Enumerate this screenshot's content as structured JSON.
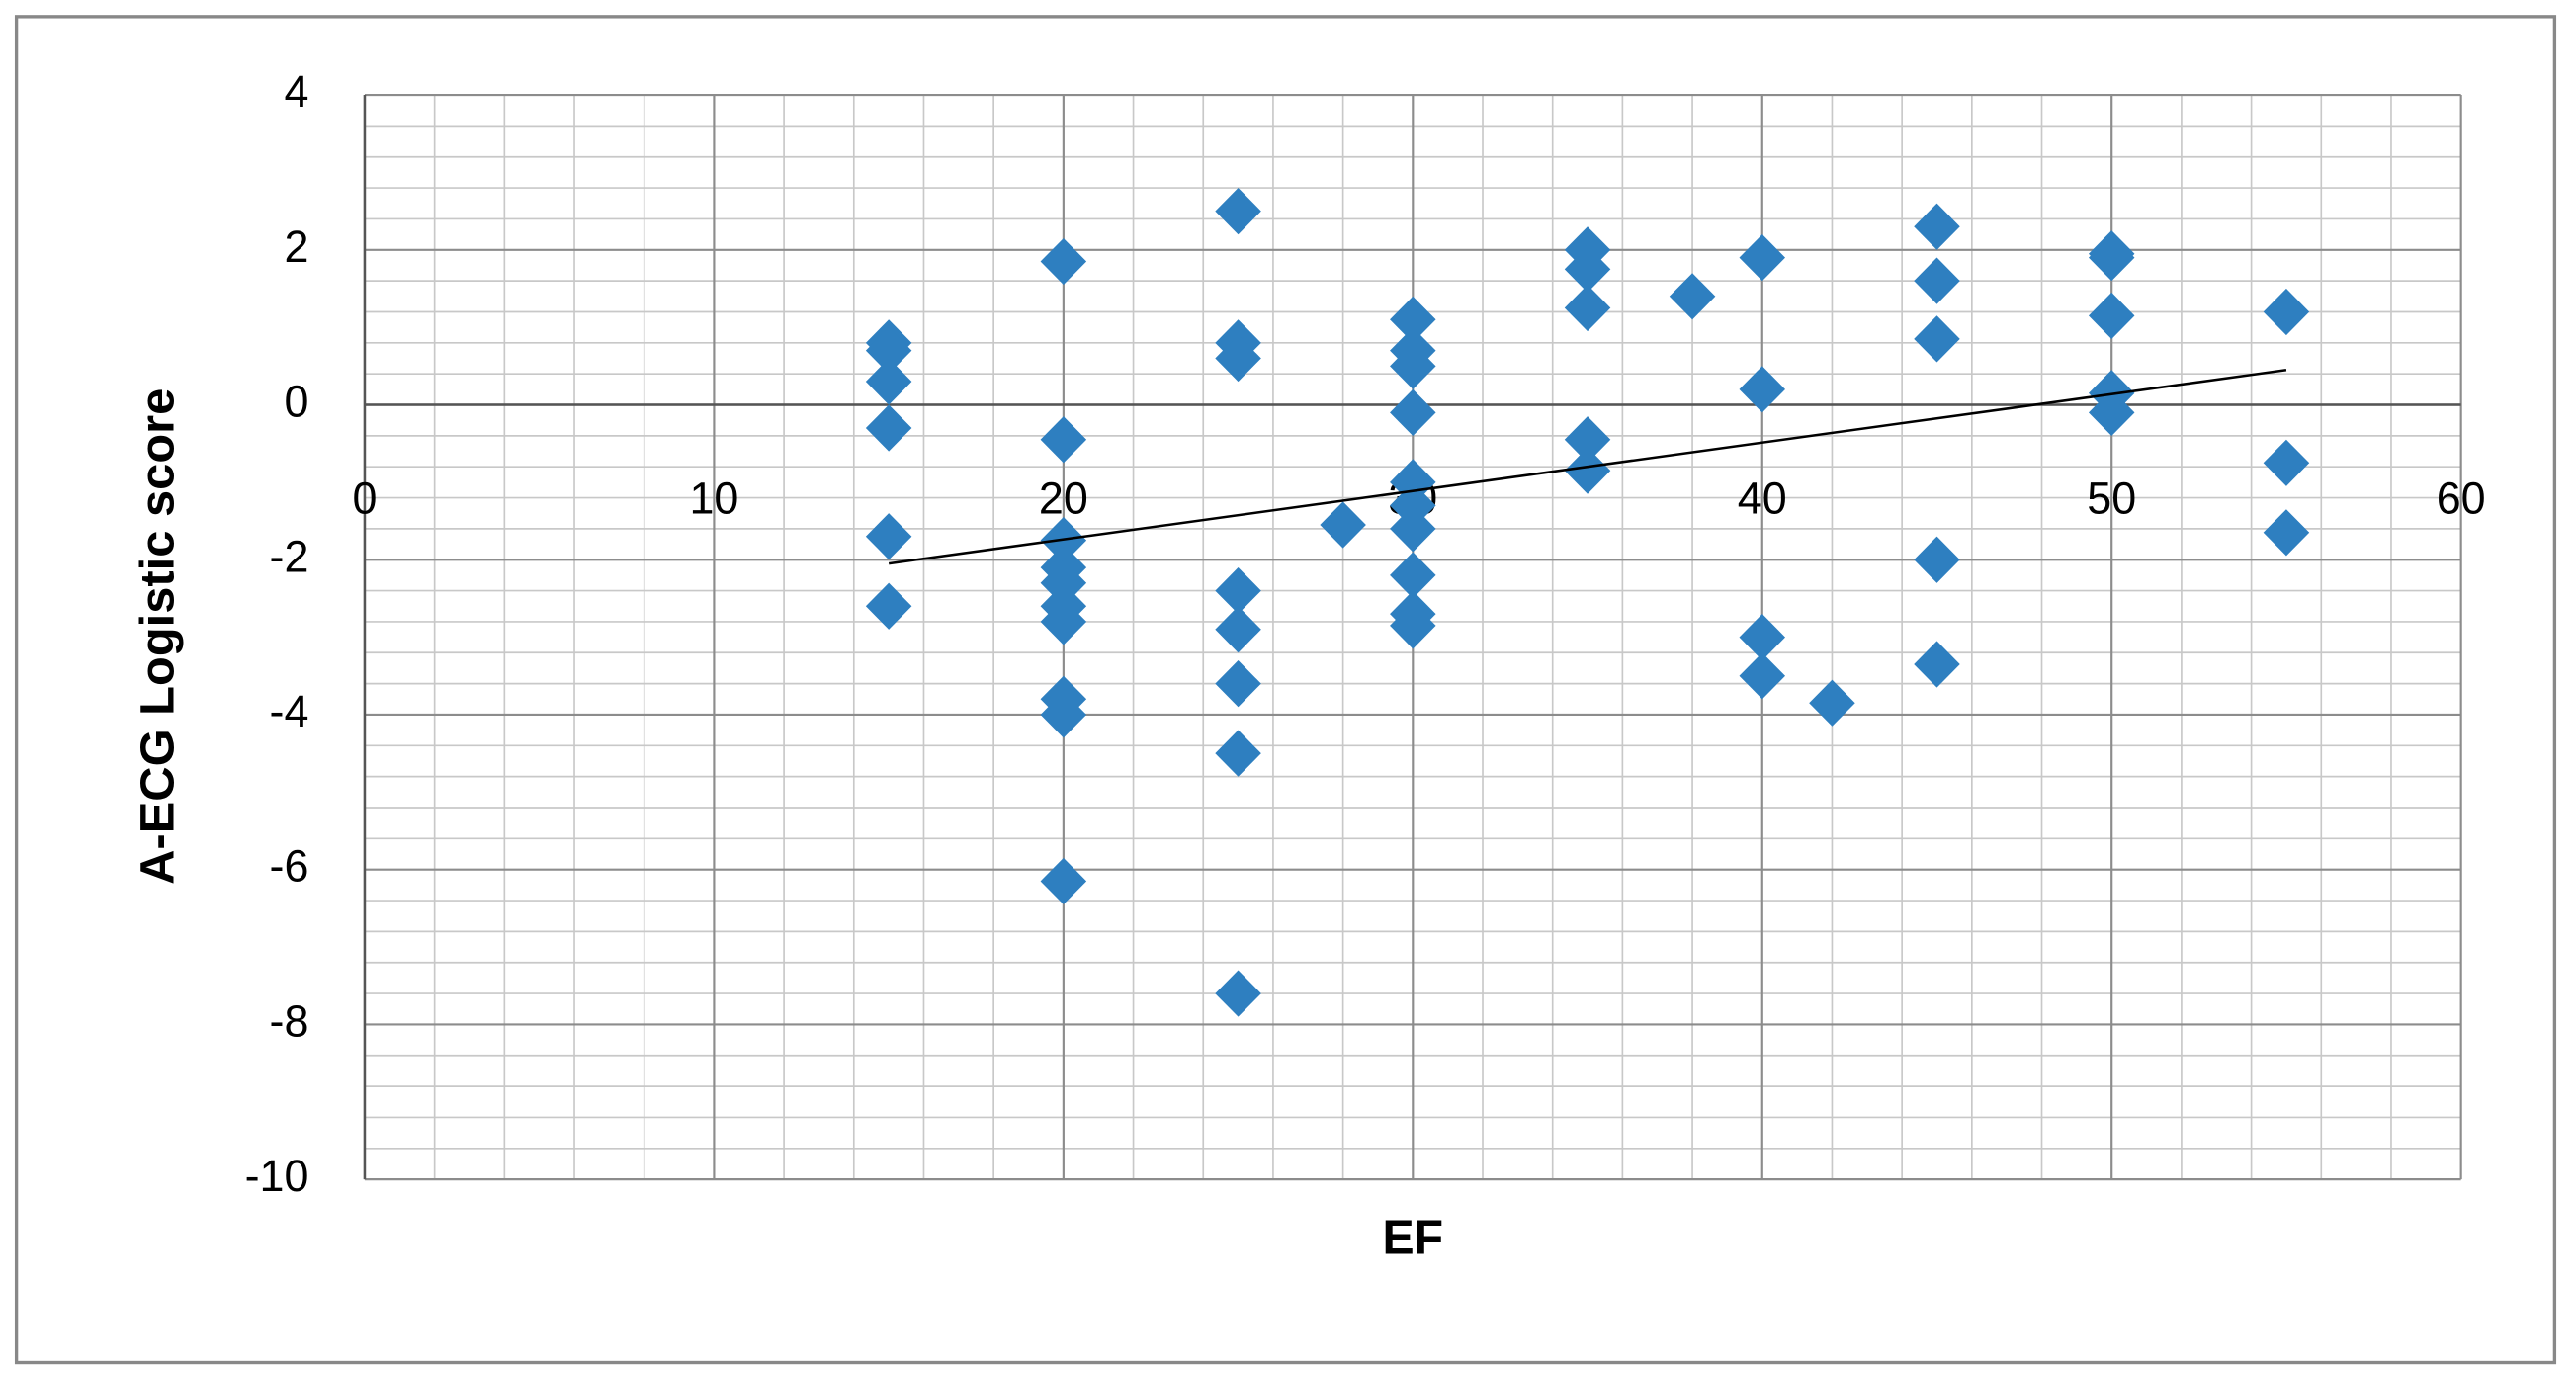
{
  "chart_data": {
    "type": "scatter",
    "x_label": "EF",
    "y_label": "A-ECG Logistic score",
    "x": [
      15,
      15,
      15,
      15,
      15,
      15,
      20,
      20,
      20,
      20,
      20,
      20,
      20,
      20,
      20,
      20,
      25,
      25,
      25,
      25,
      25,
      25,
      25,
      25,
      28,
      30,
      30,
      30,
      30,
      30,
      30,
      30,
      30,
      30,
      30,
      35,
      35,
      35,
      35,
      35,
      38,
      40,
      40,
      40,
      40,
      42,
      45,
      45,
      45,
      45,
      45,
      50,
      50,
      50,
      50,
      50,
      55,
      55,
      55
    ],
    "values": [
      0.8,
      0.7,
      0.3,
      -0.3,
      -1.7,
      -2.6,
      1.85,
      -0.45,
      -1.75,
      -2.1,
      -2.3,
      -2.6,
      -2.8,
      -3.8,
      -4.0,
      -6.15,
      2.5,
      0.8,
      0.6,
      -2.4,
      -2.9,
      -3.6,
      -4.5,
      -7.6,
      -1.55,
      1.1,
      0.7,
      0.5,
      -0.1,
      -1.0,
      -1.3,
      -1.6,
      -2.2,
      -2.7,
      -2.85,
      2.0,
      1.75,
      1.25,
      -0.45,
      -0.85,
      1.4,
      1.9,
      0.2,
      -3.0,
      -3.5,
      -3.85,
      2.3,
      1.6,
      0.85,
      -2.0,
      -3.35,
      1.95,
      1.9,
      1.15,
      0.15,
      -0.1,
      1.2,
      -0.75,
      -1.65
    ],
    "color": "#2e7fc0",
    "trendline": {
      "x": [
        15,
        55
      ],
      "values": [
        -2.05,
        0.45
      ],
      "color": "#000000"
    },
    "xlim": [
      0,
      60
    ],
    "xticks": [
      0,
      10,
      20,
      30,
      40,
      50,
      60
    ],
    "ylim": [
      -10,
      4
    ],
    "yticks": [
      -10,
      -8,
      -6,
      -4,
      -2,
      0,
      2,
      4
    ],
    "grid": true
  }
}
